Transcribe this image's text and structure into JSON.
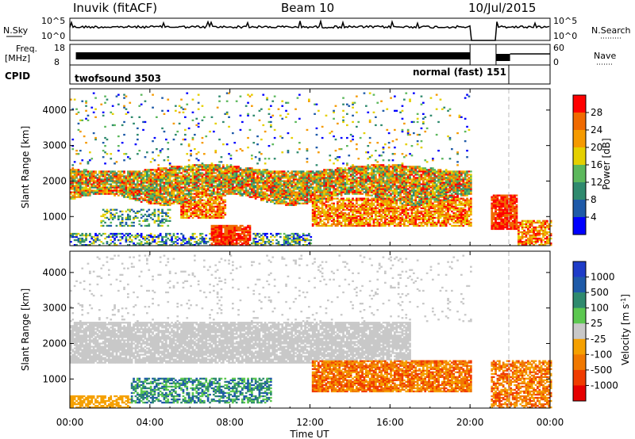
{
  "header": {
    "station": "Inuvik (fitACF)",
    "beam": "Beam 10",
    "date": "10/Jul/2015"
  },
  "strips": {
    "nsky_label": "N.Sky",
    "nsky_ticks": [
      "10^5",
      "10^0"
    ],
    "nsearch_label": "N.Search",
    "nsearch_ticks": [
      "10^5",
      "10^0"
    ],
    "freq_label": "Freq.",
    "freq_unit": "[MHz]",
    "freq_ticks": [
      "18",
      "8"
    ],
    "nave_label": "Nave",
    "nave_ticks": [
      "60",
      "0"
    ],
    "cpid_label": "CPID",
    "cpid_mode1": "twofsound 3503",
    "cpid_mode2": "normal (fast) 151"
  },
  "axes": {
    "ylabel": "Slant Range [km]",
    "xlabel": "Time UT",
    "xticks": [
      "00:00",
      "04:00",
      "08:00",
      "12:00",
      "16:00",
      "20:00",
      "00:00"
    ],
    "yticks": [
      "1000",
      "2000",
      "3000",
      "4000"
    ]
  },
  "colorbars": {
    "power": {
      "label": "Power [dB]",
      "ticks": [
        "4",
        "8",
        "12",
        "16",
        "20",
        "24",
        "28"
      ],
      "colors": [
        "#0000ff",
        "#1e5aa8",
        "#2f8a6e",
        "#5cb85c",
        "#e5d000",
        "#f59a00",
        "#f06a00",
        "#ff0000"
      ]
    },
    "velocity": {
      "label": "Velocity [m s",
      "label_sup": "-1",
      "label_end": "]",
      "ticks": [
        "1000",
        "500",
        "100",
        "25",
        "-25",
        "-100",
        "-500",
        "-1000"
      ],
      "colors": [
        "#1e3cc8",
        "#1e5aa8",
        "#2f8a6e",
        "#5cc850",
        "#c8c8c8",
        "#f5a000",
        "#f07800",
        "#f03c00",
        "#e60000"
      ]
    }
  },
  "chart_data": [
    {
      "type": "heatmap",
      "panel": "power",
      "xlabel": "Time UT",
      "ylabel": "Slant Range [km]",
      "xlim_hours": [
        0,
        24
      ],
      "ylim": [
        180,
        4600
      ],
      "bands": [
        {
          "t0": 0.0,
          "t1": 20.0,
          "r0": 1450,
          "r1": 2350,
          "level": "mixed-high"
        },
        {
          "t0": 5.5,
          "t1": 7.5,
          "r0": 900,
          "r1": 1700,
          "level": "high"
        },
        {
          "t0": 7.0,
          "t1": 9.0,
          "r0": 200,
          "r1": 700,
          "level": "very-high"
        },
        {
          "t0": 12.0,
          "t1": 20.0,
          "r0": 700,
          "r1": 1500,
          "level": "high"
        },
        {
          "t0": 21.0,
          "t1": 22.3,
          "r0": 600,
          "r1": 1600,
          "level": "very-high"
        },
        {
          "t0": 22.3,
          "t1": 24.0,
          "r0": 200,
          "r1": 900,
          "level": "high"
        }
      ],
      "data_gap_hours": [
        20.0,
        21.0
      ]
    },
    {
      "type": "heatmap",
      "panel": "velocity",
      "xlabel": "Time UT",
      "ylabel": "Slant Range [km]",
      "xlim_hours": [
        0,
        24
      ],
      "ylim": [
        180,
        4600
      ],
      "bands": [
        {
          "t0": 0.0,
          "t1": 17.0,
          "r0": 1400,
          "r1": 2600,
          "velocity": "near-zero"
        },
        {
          "t0": 12.0,
          "t1": 20.0,
          "r0": 600,
          "r1": 1500,
          "velocity": "-100 to -500"
        },
        {
          "t0": 3.0,
          "t1": 10.0,
          "r0": 300,
          "r1": 1000,
          "velocity": "+25 to +500"
        },
        {
          "t0": 0.0,
          "t1": 3.0,
          "r0": 200,
          "r1": 500,
          "velocity": "-100"
        },
        {
          "t0": 21.0,
          "t1": 24.0,
          "r0": 200,
          "r1": 1500,
          "velocity": "-100 to -500"
        }
      ],
      "data_gap_hours": [
        20.0,
        21.0
      ]
    }
  ]
}
